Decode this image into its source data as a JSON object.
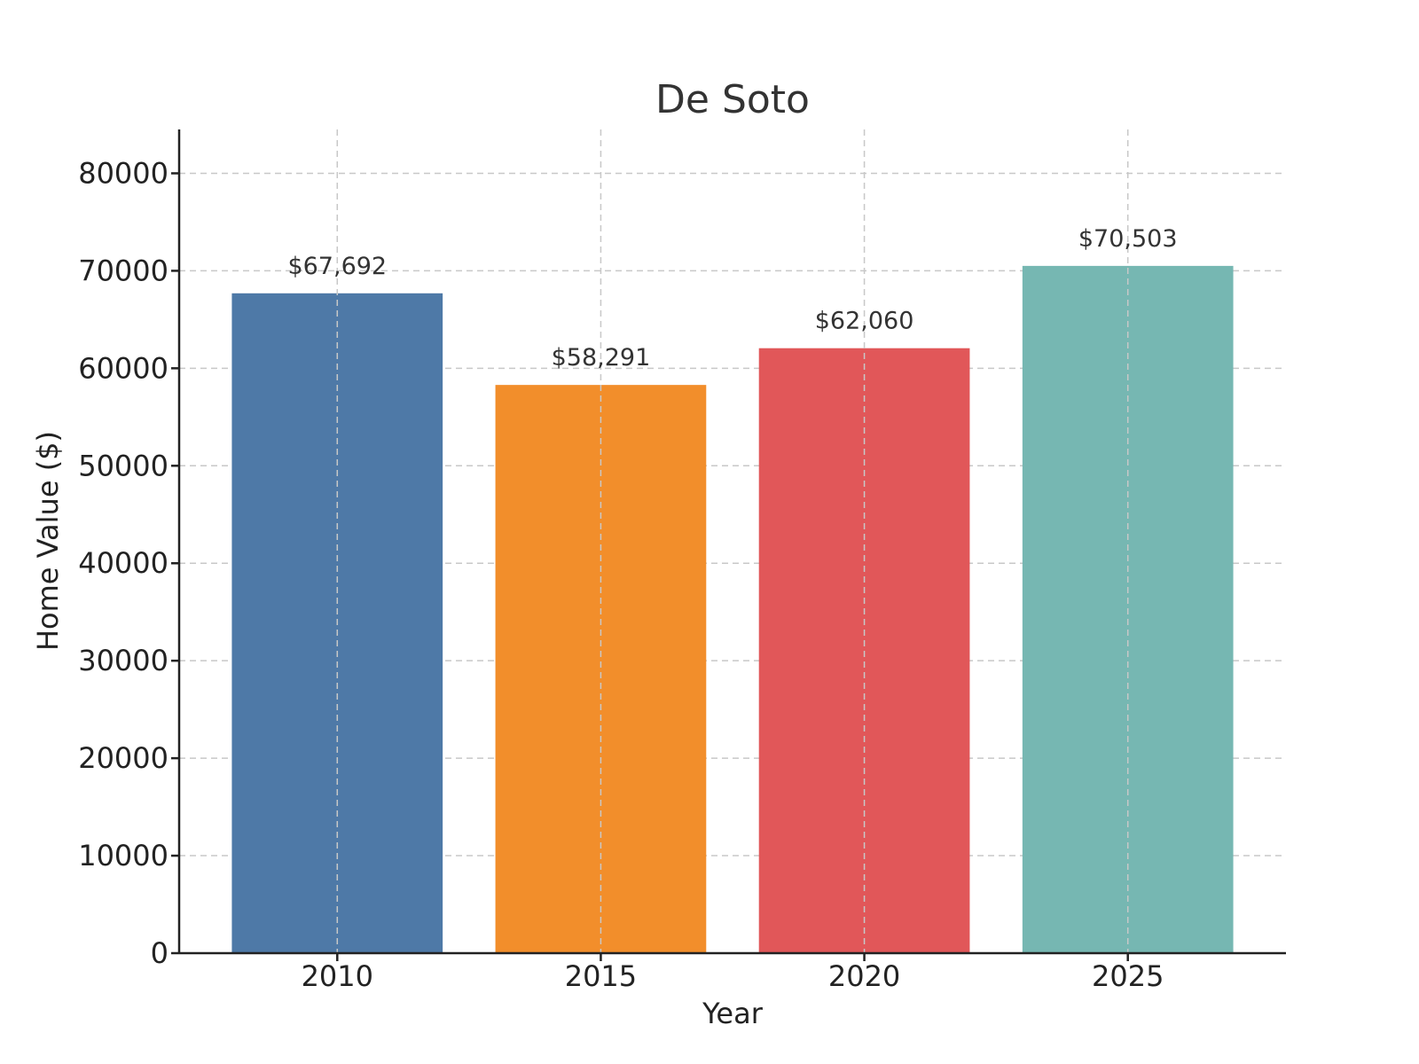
{
  "chart_data": {
    "type": "bar",
    "title": "De Soto",
    "xlabel": "Year",
    "ylabel": "Home Value ($)",
    "categories": [
      "2010",
      "2015",
      "2020",
      "2025"
    ],
    "values": [
      67692,
      58291,
      62060,
      70503
    ],
    "data_labels": [
      "$67,692",
      "$58,291",
      "$62,060",
      "$70,503"
    ],
    "colors": [
      "#4e79a7",
      "#f28e2b",
      "#e15759",
      "#76b7b2"
    ],
    "ylim": [
      0,
      84500
    ],
    "yticks": [
      0,
      10000,
      20000,
      30000,
      40000,
      50000,
      60000,
      70000,
      80000
    ],
    "ytick_labels": [
      "0",
      "10000",
      "20000",
      "30000",
      "40000",
      "50000",
      "60000",
      "70000",
      "80000"
    ],
    "grid": true,
    "legend": "none"
  }
}
